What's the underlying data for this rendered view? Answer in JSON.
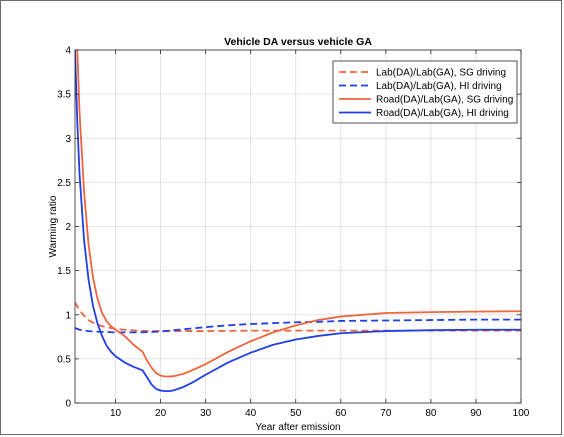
{
  "chart_data": {
    "type": "line",
    "title": "Vehicle DA versus vehicle GA",
    "xlabel": "Year after emission",
    "ylabel": "Warming ratio",
    "xlim": [
      1,
      100
    ],
    "ylim": [
      0,
      4
    ],
    "xticks": [
      10,
      20,
      30,
      40,
      50,
      60,
      70,
      80,
      90,
      100
    ],
    "yticks": [
      0,
      0.5,
      1,
      1.5,
      2,
      2.5,
      3,
      3.5,
      4
    ],
    "xtick_labels": [
      "10",
      "20",
      "30",
      "40",
      "50",
      "60",
      "70",
      "80",
      "90",
      "100"
    ],
    "ytick_labels": [
      "0",
      "0.5",
      "1",
      "1.5",
      "2",
      "2.5",
      "3",
      "3.5",
      "4"
    ],
    "grid": true,
    "legend_position": "top-right",
    "colors": {
      "sg": "#f0643c",
      "hi": "#1f3ee6"
    },
    "series": [
      {
        "name": "Lab(DA)/Lab(GA), SG driving",
        "color": "#f0643c",
        "dash": "dashed",
        "x": [
          1,
          2,
          3,
          4,
          5,
          6,
          7,
          8,
          9,
          10,
          12,
          15,
          18,
          20,
          22,
          25,
          30,
          40,
          50,
          60,
          70,
          80,
          90,
          100
        ],
        "y": [
          1.14,
          1.05,
          0.99,
          0.94,
          0.91,
          0.89,
          0.87,
          0.86,
          0.85,
          0.84,
          0.83,
          0.82,
          0.815,
          0.815,
          0.815,
          0.815,
          0.815,
          0.82,
          0.82,
          0.82,
          0.82,
          0.82,
          0.82,
          0.82
        ]
      },
      {
        "name": "Lab(DA)/Lab(GA), HI driving",
        "color": "#1f3ee6",
        "dash": "dashed",
        "x": [
          1,
          2,
          3,
          5,
          8,
          10,
          12,
          15,
          18,
          20,
          22,
          25,
          30,
          35,
          40,
          45,
          50,
          55,
          60,
          70,
          80,
          90,
          100
        ],
        "y": [
          0.85,
          0.83,
          0.82,
          0.81,
          0.805,
          0.8,
          0.8,
          0.8,
          0.805,
          0.81,
          0.82,
          0.835,
          0.86,
          0.88,
          0.895,
          0.905,
          0.915,
          0.92,
          0.93,
          0.935,
          0.94,
          0.945,
          0.945
        ]
      },
      {
        "name": "Road(DA)/Lab(GA), SG driving",
        "color": "#f0643c",
        "dash": "solid",
        "x": [
          1.5,
          2,
          3,
          4,
          5,
          6,
          7,
          8,
          9,
          10,
          12,
          14,
          15,
          16,
          17,
          18,
          19,
          20,
          21,
          22,
          23,
          25,
          27,
          30,
          35,
          40,
          45,
          50,
          55,
          60,
          70,
          80,
          90,
          100
        ],
        "y": [
          4.0,
          3.3,
          2.4,
          1.8,
          1.42,
          1.18,
          1.02,
          0.93,
          0.87,
          0.83,
          0.76,
          0.66,
          0.62,
          0.58,
          0.48,
          0.4,
          0.34,
          0.31,
          0.3,
          0.3,
          0.305,
          0.33,
          0.37,
          0.44,
          0.58,
          0.7,
          0.8,
          0.88,
          0.94,
          0.98,
          1.02,
          1.03,
          1.035,
          1.04
        ]
      },
      {
        "name": "Road(DA)/Lab(GA), HI driving",
        "color": "#1f3ee6",
        "dash": "solid",
        "x": [
          1,
          1.5,
          2,
          3,
          4,
          5,
          6,
          7,
          8,
          9,
          10,
          12,
          14,
          15,
          16,
          17,
          18,
          19,
          20,
          21,
          22,
          23,
          25,
          27,
          30,
          35,
          40,
          45,
          50,
          55,
          60,
          70,
          80,
          90,
          100
        ],
        "y": [
          4.0,
          3.2,
          2.6,
          1.85,
          1.4,
          1.1,
          0.9,
          0.76,
          0.65,
          0.58,
          0.53,
          0.46,
          0.41,
          0.39,
          0.37,
          0.29,
          0.21,
          0.16,
          0.14,
          0.135,
          0.135,
          0.145,
          0.18,
          0.23,
          0.32,
          0.46,
          0.57,
          0.66,
          0.72,
          0.76,
          0.79,
          0.815,
          0.825,
          0.83,
          0.83
        ]
      }
    ]
  }
}
